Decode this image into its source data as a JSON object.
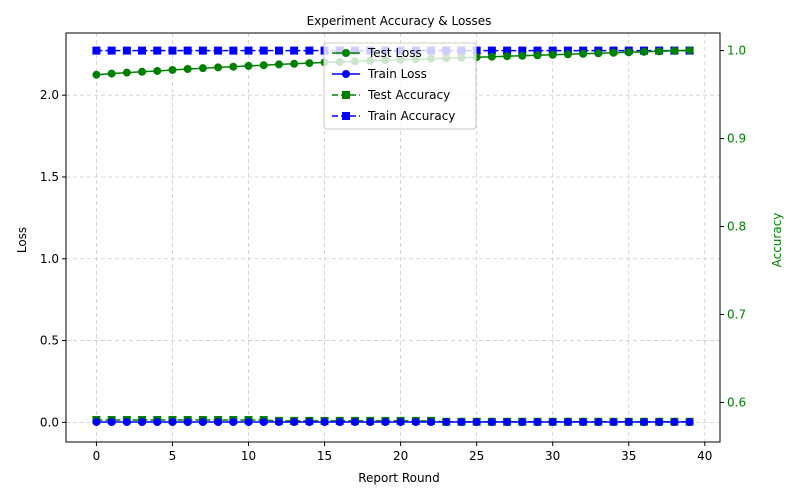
{
  "chart_data": {
    "type": "line",
    "title": "Experiment Accuracy & Losses",
    "xlabel": "Report Round",
    "ylabel_left": "Loss",
    "ylabel_right": "Accuracy",
    "xlim": [
      -2,
      41
    ],
    "ylim_left": [
      -0.12,
      2.38
    ],
    "ylim_right": [
      0.555,
      1.02
    ],
    "x_ticks": [
      0,
      5,
      10,
      15,
      20,
      25,
      30,
      35,
      40
    ],
    "y_ticks_left": [
      0.0,
      0.5,
      1.0,
      1.5,
      2.0
    ],
    "y_ticks_left_labels": [
      "0.0",
      "0.5",
      "1.0",
      "1.5",
      "2.0"
    ],
    "y_ticks_right": [
      0.6,
      0.7,
      0.8,
      0.9,
      1.0
    ],
    "y_ticks_right_labels": [
      "0.6",
      "0.7",
      "0.8",
      "0.9",
      "1.0"
    ],
    "grid": true,
    "legend_position": "upper-center",
    "x": [
      0,
      1,
      2,
      3,
      4,
      5,
      6,
      7,
      8,
      9,
      10,
      11,
      12,
      13,
      14,
      15,
      16,
      17,
      18,
      19,
      20,
      21,
      22,
      23,
      24,
      25,
      26,
      27,
      28,
      29,
      30,
      31,
      32,
      33,
      34,
      35,
      36,
      37,
      38,
      39
    ],
    "series": [
      {
        "name": "Test Loss",
        "axis": "left",
        "color": "#008000",
        "linestyle": "solid",
        "marker": "circle",
        "values": [
          2.125,
          2.132,
          2.138,
          2.143,
          2.148,
          2.154,
          2.16,
          2.165,
          2.17,
          2.174,
          2.179,
          2.183,
          2.188,
          2.192,
          2.196,
          2.2,
          2.203,
          2.207,
          2.21,
          2.214,
          2.217,
          2.22,
          2.223,
          2.226,
          2.229,
          2.232,
          2.235,
          2.238,
          2.241,
          2.244,
          2.247,
          2.25,
          2.253,
          2.256,
          2.259,
          2.262,
          2.265,
          2.268,
          2.271,
          2.274
        ]
      },
      {
        "name": "Train Loss",
        "axis": "left",
        "color": "#0000ff",
        "linestyle": "solid",
        "marker": "circle",
        "values": [
          0.002,
          0.002,
          0.002,
          0.002,
          0.002,
          0.002,
          0.002,
          0.002,
          0.002,
          0.002,
          0.002,
          0.002,
          0.002,
          0.002,
          0.002,
          0.002,
          0.002,
          0.002,
          0.002,
          0.002,
          0.002,
          0.002,
          0.002,
          0.002,
          0.002,
          0.002,
          0.002,
          0.002,
          0.002,
          0.002,
          0.002,
          0.002,
          0.002,
          0.002,
          0.002,
          0.002,
          0.002,
          0.002,
          0.002,
          0.002
        ]
      },
      {
        "name": "Test Accuracy",
        "axis": "right",
        "color": "#008000",
        "linestyle": "dashed",
        "marker": "square",
        "values": [
          0.58,
          0.58,
          0.58,
          0.58,
          0.58,
          0.58,
          0.58,
          0.58,
          0.58,
          0.58,
          0.58,
          0.58,
          0.579,
          0.579,
          0.579,
          0.579,
          0.579,
          0.579,
          0.579,
          0.579,
          0.579,
          0.579,
          0.579,
          0.578,
          0.578,
          0.578,
          0.578,
          0.578,
          0.578,
          0.578,
          0.578,
          0.578,
          0.578,
          0.578,
          0.578,
          0.578,
          0.578,
          0.578,
          0.578,
          0.578
        ]
      },
      {
        "name": "Train Accuracy",
        "axis": "right",
        "color": "#0000ff",
        "linestyle": "dashed",
        "marker": "square",
        "values": [
          1.0,
          1.0,
          1.0,
          1.0,
          1.0,
          1.0,
          1.0,
          1.0,
          1.0,
          1.0,
          1.0,
          1.0,
          1.0,
          1.0,
          1.0,
          1.0,
          1.0,
          1.0,
          1.0,
          1.0,
          1.0,
          1.0,
          1.0,
          1.0,
          1.0,
          1.0,
          1.0,
          1.0,
          1.0,
          1.0,
          1.0,
          1.0,
          1.0,
          1.0,
          1.0,
          1.0,
          1.0,
          1.0,
          1.0,
          1.0
        ]
      }
    ]
  }
}
